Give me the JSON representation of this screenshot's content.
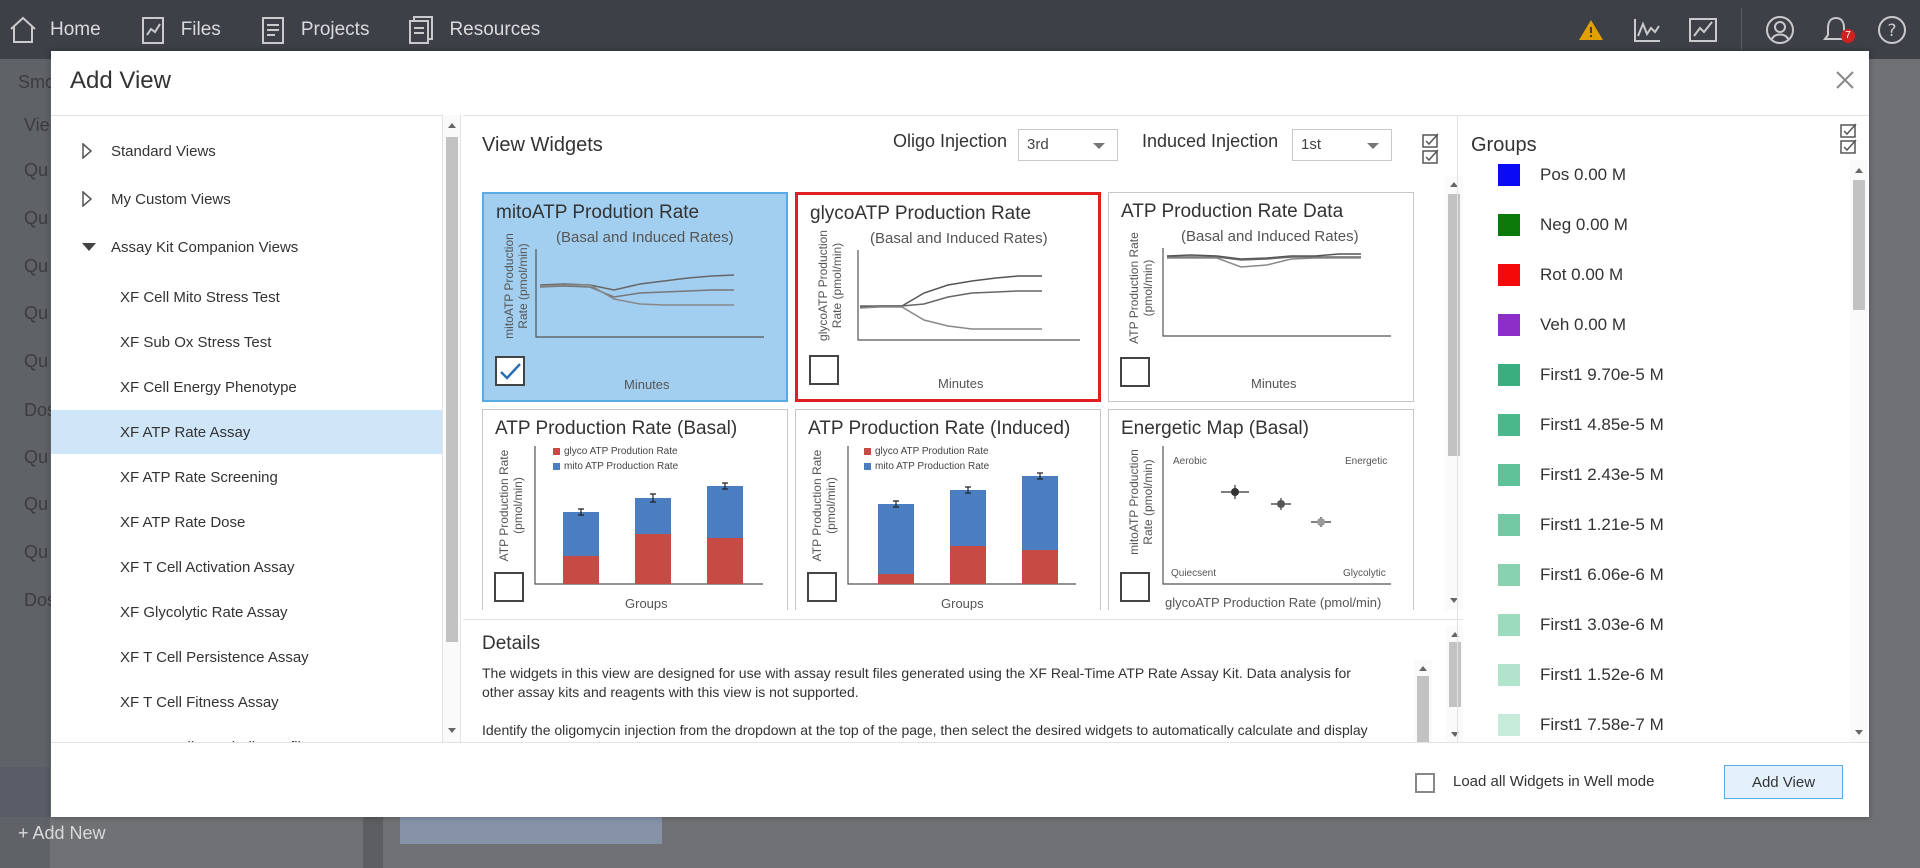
{
  "nav": {
    "home": "Home",
    "files": "Files",
    "projects": "Projects",
    "resources": "Resources",
    "notification_count": "7"
  },
  "background": {
    "side_texts": [
      "Smo",
      "Vie",
      "Qu",
      "Qu",
      "Qu",
      "Qu",
      "Qu",
      "Dos",
      "Qu",
      "Qu",
      "Qu",
      "Dos"
    ],
    "add_new": "+ Add New"
  },
  "modal": {
    "title": "Add View",
    "tree": {
      "nodes": [
        {
          "label": "Standard Views",
          "expanded": false
        },
        {
          "label": "My Custom Views",
          "expanded": false
        },
        {
          "label": "Assay Kit Companion Views",
          "expanded": true
        }
      ],
      "children": [
        {
          "label": "XF Cell Mito Stress Test"
        },
        {
          "label": "XF Sub Ox Stress Test"
        },
        {
          "label": "XF Cell Energy Phenotype"
        },
        {
          "label": "XF ATP Rate Assay",
          "selected": true
        },
        {
          "label": "XF ATP Rate Screening"
        },
        {
          "label": "XF ATP Rate Dose"
        },
        {
          "label": "XF T Cell Activation Assay"
        },
        {
          "label": "XF Glycolytic Rate Assay"
        },
        {
          "label": "XF T Cell Persistence Assay"
        },
        {
          "label": "XF T Cell Fitness Assay"
        },
        {
          "label": "XF NK Cell Metabolic Profile"
        }
      ]
    },
    "view_widgets": {
      "title": "View Widgets",
      "oligo_label": "Oligo Injection",
      "oligo_value": "3rd",
      "induced_label": "Induced Injection",
      "induced_value": "1st",
      "widgets": [
        {
          "title": "mitoATP Prodution Rate",
          "subtitle": "(Basal and Induced Rates)",
          "ylabel1": "mitoATP Production",
          "ylabel2": "Rate (pmol/min)",
          "xlabel": "Minutes",
          "checked": true
        },
        {
          "title": "glycoATP Production Rate",
          "subtitle": "(Basal and Induced Rates)",
          "ylabel1": "glycoATP Production",
          "ylabel2": "Rate (pmol/min)",
          "xlabel": "Minutes",
          "checked": false
        },
        {
          "title": "ATP Production Rate Data",
          "subtitle": "(Basal and Induced Rates)",
          "ylabel1": "ATP Production Rate",
          "ylabel2": "(pmol/min)",
          "xlabel": "Minutes",
          "checked": false
        },
        {
          "title": "ATP Production Rate (Basal)",
          "ylabel1": "ATP Production Rate",
          "ylabel2": "(pmol/min)",
          "xlabel": "Groups",
          "legend": [
            "glyco ATP Prodution Rate",
            "mito ATP Production Rate"
          ],
          "checked": false
        },
        {
          "title": "ATP Production Rate (Induced)",
          "ylabel1": "ATP Production Rate",
          "ylabel2": "(pmol/min)",
          "xlabel": "Groups",
          "legend": [
            "glyco ATP Prodution Rate",
            "mito ATP Production Rate"
          ],
          "checked": false
        },
        {
          "title": "Energetic Map (Basal)",
          "ylabel1": "mitoATP Production",
          "ylabel2": "Rate (pmol/min)",
          "xlabel": "glycoATP Production Rate (pmol/min)",
          "corners": [
            "Aerobic",
            "Energetic",
            "Quiecsent",
            "Glycolytic"
          ],
          "checked": false
        }
      ]
    },
    "details": {
      "title": "Details",
      "paragraphs": [
        "The widgets in this view are designed for use with assay result files generated using the XF Real-Time ATP Rate Assay Kit. Data analysis for other assay kits and reagents with this view is not supported.",
        "Identify the oligomycin injection from the dropdown at the top of the page, then select the desired widgets to automatically calculate and display parameters for mitoATP Production Rate, glycoATP Production Rate, total ATP Production Rate, XF ATP Rate"
      ]
    },
    "groups": {
      "title": "Groups",
      "items": [
        {
          "label": "Pos 0.00 M",
          "color": "#0a0af5"
        },
        {
          "label": "Neg 0.00 M",
          "color": "#0b7a0b"
        },
        {
          "label": "Rot 0.00 M",
          "color": "#f50a0a"
        },
        {
          "label": "Veh 0.00 M",
          "color": "#8e2ec8"
        },
        {
          "label": "First1 9.70e-5 M",
          "color": "#3aae7e"
        },
        {
          "label": "First1 4.85e-5 M",
          "color": "#4ab88a"
        },
        {
          "label": "First1 2.43e-5 M",
          "color": "#5ec197"
        },
        {
          "label": "First1 1.21e-5 M",
          "color": "#72c9a4"
        },
        {
          "label": "First1 6.06e-6 M",
          "color": "#88d2b1"
        },
        {
          "label": "First1 3.03e-6 M",
          "color": "#9ddbbf"
        },
        {
          "label": "First1 1.52e-6 M",
          "color": "#b2e3cd"
        },
        {
          "label": "First1 7.58e-7 M",
          "color": "#c6ebdb"
        }
      ]
    },
    "footer": {
      "load_all_label": "Load all Widgets in Well mode",
      "add_view_label": "Add View"
    }
  }
}
